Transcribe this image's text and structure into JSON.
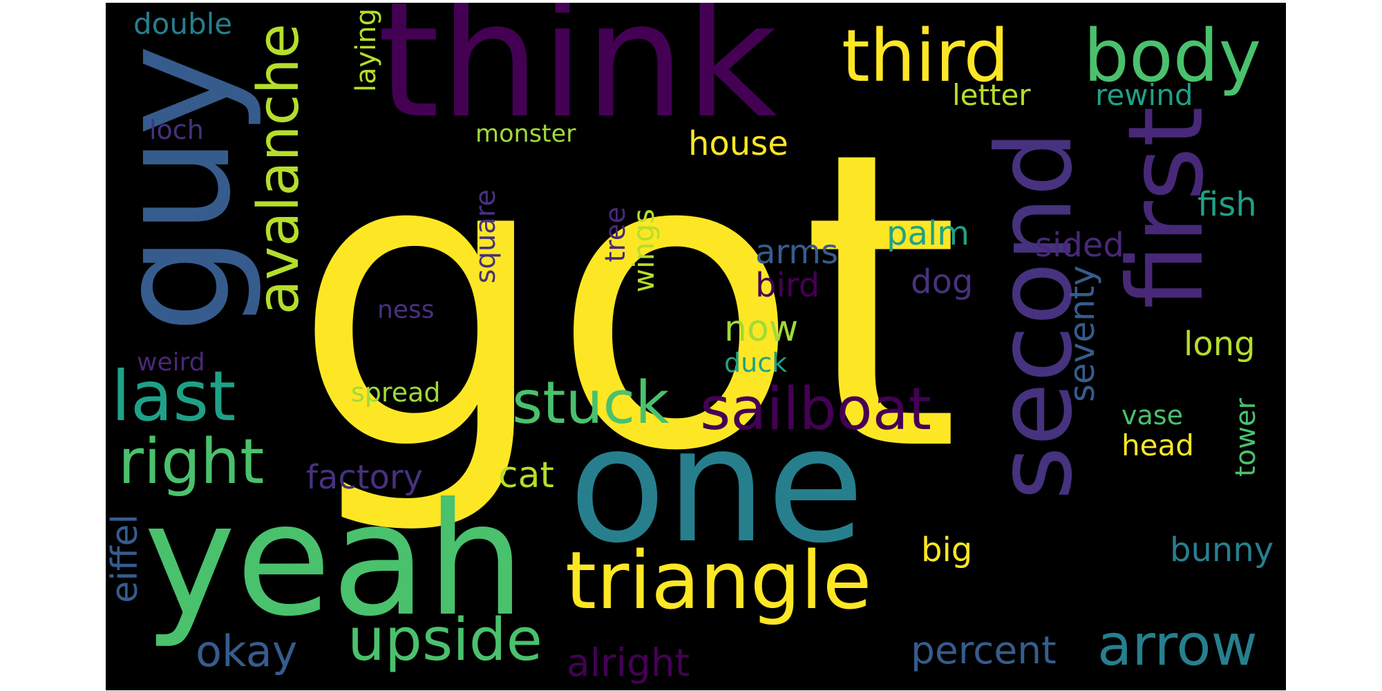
{
  "words": {
    "got": "got",
    "think": "think",
    "one": "one",
    "yeah": "yeah",
    "guy": "guy",
    "second": "second",
    "first": "first",
    "triangle": "triangle",
    "third": "third",
    "body": "body",
    "avalanche": "avalanche",
    "last": "last",
    "right": "right",
    "sailboat": "sailboat",
    "stuck": "stuck",
    "upside": "upside",
    "arrow": "arrow",
    "okay": "okay",
    "alright": "alright",
    "percent": "percent",
    "bunny": "bunny",
    "big": "big",
    "eiffel": "eiffel",
    "factory": "factory",
    "cat": "cat",
    "now": "now",
    "duck": "duck",
    "spread": "spread",
    "weird": "weird",
    "ness": "ness",
    "loch": "loch",
    "double": "double",
    "monster": "monster",
    "house": "house",
    "letter": "letter",
    "rewind": "rewind",
    "fish": "fish",
    "palm": "palm",
    "sided": "sided",
    "arms": "arms",
    "bird": "bird",
    "dog": "dog",
    "long": "long",
    "vase": "vase",
    "head": "head",
    "laying": "laying",
    "square": "square",
    "tree": "tree",
    "wings": "wings",
    "seventy": "seventy",
    "tower": "tower"
  },
  "colors": {
    "background": "#000000",
    "yellow": "#fde725",
    "green": "#4ac16d",
    "teal": "#1fa187",
    "cyan": "#277f8e",
    "blue": "#365c8d",
    "indigo": "#46327e",
    "purple": "#440154"
  }
}
